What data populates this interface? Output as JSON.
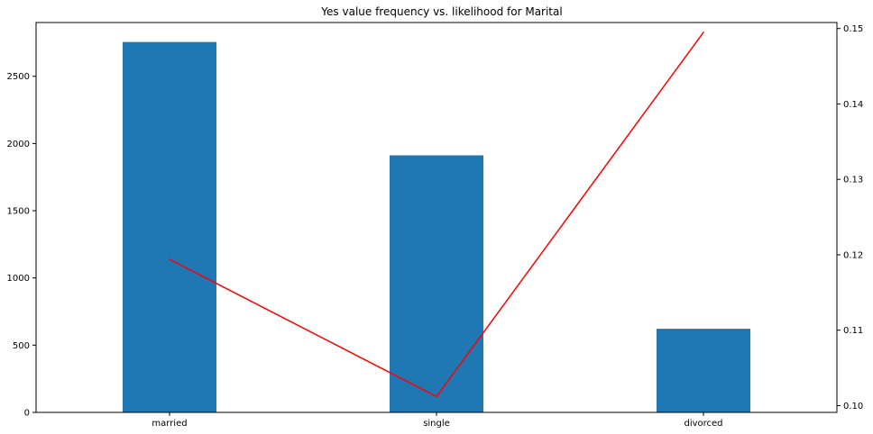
{
  "chart_data": {
    "type": "bar",
    "title": "Yes value frequency vs. likelihood for Marital",
    "categories": [
      "married",
      "single",
      "divorced"
    ],
    "series": [
      {
        "type": "bar",
        "axis": "left",
        "color": "#1f77b4",
        "values": [
          2755,
          1912,
          622
        ]
      },
      {
        "type": "line",
        "axis": "right",
        "color": "#ff0000",
        "values": [
          0.1194,
          0.1012,
          0.1495
        ]
      }
    ],
    "y_left": {
      "ylim": [
        0,
        2900
      ],
      "ticks": [
        0,
        500,
        1000,
        1500,
        2000,
        2500
      ]
    },
    "y_right": {
      "ylim": [
        0.0991,
        0.1508
      ],
      "ticks": [
        0.1,
        0.11,
        0.12,
        0.13,
        0.14,
        0.15
      ],
      "tick_labels": [
        "0.10",
        "0.11",
        "0.12",
        "0.13",
        "0.14",
        "0.15"
      ]
    },
    "xlabel": "",
    "ylabel": "",
    "grid": false
  }
}
